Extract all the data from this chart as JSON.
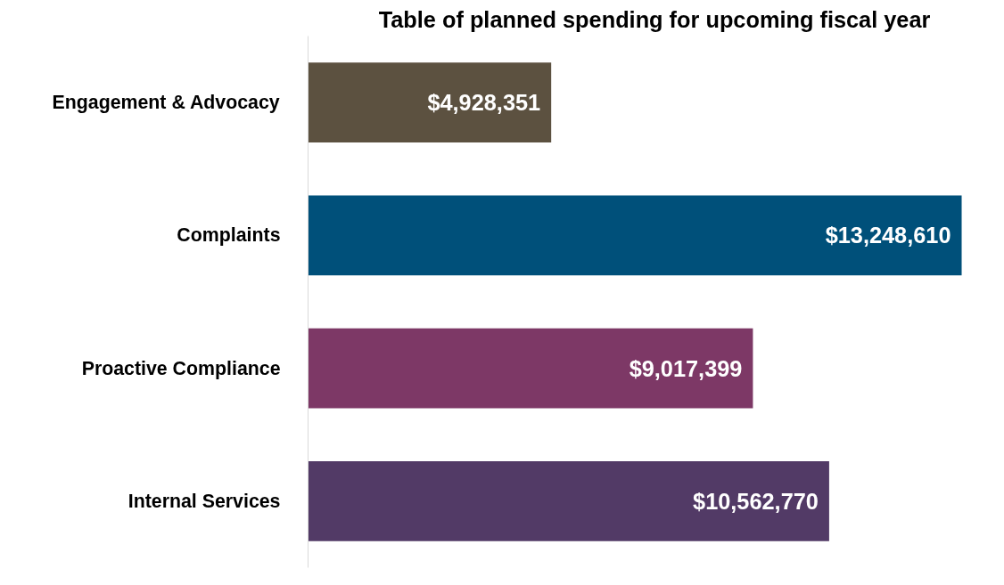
{
  "chart_data": {
    "type": "bar",
    "orientation": "horizontal",
    "title": "Table of planned spending for upcoming fiscal year",
    "categories": [
      "Engagement & Advocacy",
      "Complaints",
      "Proactive Compliance",
      "Internal Services"
    ],
    "values": [
      4928351,
      13248610,
      9017399,
      10562770
    ],
    "colors": [
      "#5c5140",
      "#00507a",
      "#7d3866",
      "#523a66"
    ],
    "value_labels": [
      "$4,928,351",
      "$13,248,610",
      "$9,017,399",
      "$10,562,770"
    ]
  }
}
